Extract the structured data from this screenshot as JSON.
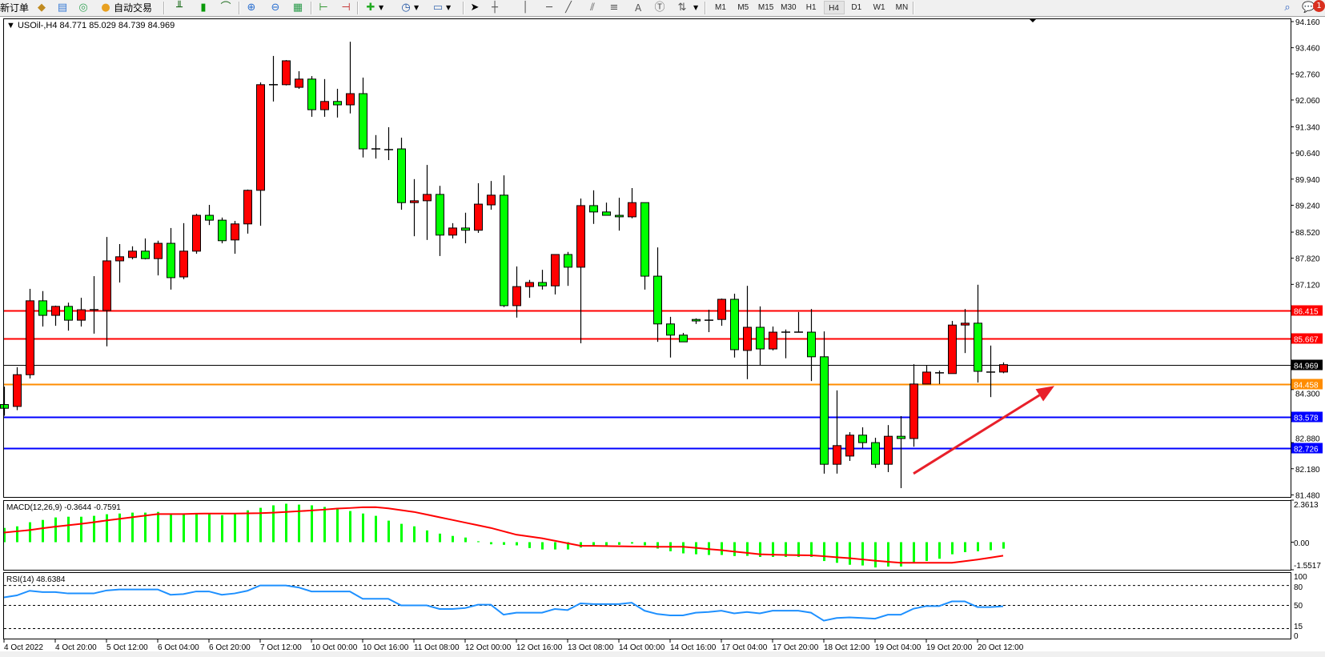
{
  "toolbar": {
    "new_order_label": "新订单",
    "auto_trading_label": "自动交易",
    "text_tool_label": "A",
    "timeframes": [
      "M1",
      "M5",
      "M15",
      "M30",
      "H1",
      "H4",
      "D1",
      "W1",
      "MN"
    ],
    "active_timeframe": "H4",
    "notification_count": "1"
  },
  "chart": {
    "header": "▼ USOil-,H4  84.771 85.029 84.739 84.969",
    "symbol": "USOil-",
    "period": "H4",
    "colors": {
      "bull": "#ff0000",
      "bear": "#00ff00",
      "outline": "#000000",
      "resistance": "#ff0000",
      "support": "#0000ff",
      "pivot": "#ff8c00",
      "bid": "#000000",
      "arrow": "#e8202a",
      "rsi": "#1e90ff",
      "macd_hist": "#00ff00",
      "macd_signal": "#ff0000"
    }
  },
  "chart_data": {
    "type": "candlestick",
    "price_range": [
      81.48,
      94.16
    ],
    "price_ticks": [
      "94.160",
      "93.460",
      "92.760",
      "92.060",
      "91.340",
      "90.640",
      "89.940",
      "89.240",
      "88.520",
      "87.820",
      "87.120",
      "84.300",
      "82.880",
      "82.180",
      "81.480"
    ],
    "levels": [
      {
        "price": "86.415",
        "color": "#ff0000"
      },
      {
        "price": "85.667",
        "color": "#ff0000"
      },
      {
        "price": "84.969",
        "color": "#000000"
      },
      {
        "price": "84.458",
        "color": "#ff8c00"
      },
      {
        "price": "83.578",
        "color": "#0000ff"
      },
      {
        "price": "82.726",
        "color": "#0000ff"
      }
    ],
    "time_labels": [
      "4 Oct 2022",
      "4 Oct 20:00",
      "5 Oct 12:00",
      "6 Oct 04:00",
      "6 Oct 20:00",
      "7 Oct 12:00",
      "10 Oct 00:00",
      "10 Oct 16:00",
      "11 Oct 08:00",
      "12 Oct 00:00",
      "12 Oct 16:00",
      "13 Oct 08:00",
      "14 Oct 00:00",
      "14 Oct 16:00",
      "17 Oct 04:00",
      "17 Oct 20:00",
      "18 Oct 12:00",
      "19 Oct 04:00",
      "19 Oct 20:00",
      "20 Oct 12:00"
    ],
    "ohlc": [
      [
        83.9,
        84.38,
        83.6,
        83.8
      ],
      [
        83.85,
        84.9,
        83.75,
        84.7
      ],
      [
        84.7,
        87.0,
        84.6,
        86.68
      ],
      [
        86.68,
        86.94,
        85.99,
        86.29
      ],
      [
        86.29,
        86.55,
        86.01,
        86.53
      ],
      [
        86.53,
        86.63,
        85.88,
        86.16
      ],
      [
        86.16,
        86.76,
        85.99,
        86.44
      ],
      [
        86.44,
        87.34,
        85.8,
        86.44
      ],
      [
        86.42,
        88.39,
        85.46,
        87.75
      ],
      [
        87.75,
        88.2,
        87.17,
        87.86
      ],
      [
        87.84,
        88.14,
        87.79,
        88.01
      ],
      [
        88.01,
        88.35,
        87.79,
        87.81
      ],
      [
        87.81,
        88.29,
        87.36,
        88.22
      ],
      [
        88.22,
        88.63,
        86.98,
        87.3
      ],
      [
        87.32,
        88.76,
        87.26,
        88.01
      ],
      [
        88.01,
        89.01,
        87.94,
        88.97
      ],
      [
        88.97,
        89.25,
        88.71,
        88.84
      ],
      [
        88.84,
        88.91,
        88.22,
        88.29
      ],
      [
        88.31,
        88.82,
        87.94,
        88.74
      ],
      [
        88.74,
        89.66,
        88.48,
        89.64
      ],
      [
        89.64,
        92.53,
        88.69,
        92.47
      ],
      [
        92.47,
        93.24,
        92.02,
        92.47
      ],
      [
        92.47,
        93.13,
        92.45,
        93.11
      ],
      [
        92.4,
        92.83,
        92.36,
        92.62
      ],
      [
        92.62,
        92.7,
        91.61,
        91.8
      ],
      [
        91.8,
        92.62,
        91.61,
        92.02
      ],
      [
        92.02,
        92.36,
        91.59,
        91.93
      ],
      [
        91.93,
        93.62,
        91.7,
        92.23
      ],
      [
        92.23,
        92.66,
        90.52,
        90.75
      ],
      [
        90.75,
        91.12,
        90.49,
        90.75
      ],
      [
        90.73,
        91.33,
        90.45,
        90.73
      ],
      [
        90.75,
        91.05,
        89.12,
        89.31
      ],
      [
        89.31,
        89.94,
        88.41,
        89.36
      ],
      [
        89.36,
        90.32,
        88.31,
        89.53
      ],
      [
        89.53,
        89.76,
        87.88,
        88.44
      ],
      [
        88.44,
        88.76,
        88.35,
        88.63
      ],
      [
        88.63,
        89.04,
        88.22,
        88.57
      ],
      [
        88.57,
        89.83,
        88.5,
        89.27
      ],
      [
        89.25,
        89.89,
        89.12,
        89.51
      ],
      [
        89.51,
        90.04,
        86.51,
        86.55
      ],
      [
        86.55,
        87.6,
        86.23,
        87.06
      ],
      [
        87.06,
        87.24,
        86.76,
        87.17
      ],
      [
        87.17,
        87.51,
        86.98,
        87.08
      ],
      [
        87.08,
        87.92,
        86.85,
        87.92
      ],
      [
        87.92,
        87.99,
        87.08,
        87.58
      ],
      [
        87.58,
        89.42,
        85.54,
        89.23
      ],
      [
        89.23,
        89.64,
        88.74,
        89.06
      ],
      [
        89.06,
        89.31,
        88.97,
        88.97
      ],
      [
        88.97,
        89.44,
        88.56,
        88.93
      ],
      [
        88.93,
        89.7,
        88.89,
        89.31
      ],
      [
        89.31,
        89.31,
        86.98,
        87.34
      ],
      [
        87.34,
        88.11,
        85.58,
        86.06
      ],
      [
        86.06,
        86.25,
        85.16,
        85.76
      ],
      [
        85.76,
        85.82,
        85.58,
        85.58
      ],
      [
        86.18,
        86.21,
        86.06,
        86.14
      ],
      [
        86.16,
        86.44,
        85.84,
        86.16
      ],
      [
        86.18,
        86.74,
        86.01,
        86.72
      ],
      [
        86.72,
        86.87,
        85.16,
        85.37
      ],
      [
        85.35,
        87.08,
        84.58,
        85.97
      ],
      [
        85.97,
        86.53,
        84.96,
        85.39
      ],
      [
        85.39,
        85.99,
        85.35,
        85.84
      ],
      [
        85.84,
        85.91,
        85.14,
        85.84
      ],
      [
        85.84,
        86.38,
        85.84,
        85.84
      ],
      [
        85.84,
        86.46,
        84.53,
        85.18
      ],
      [
        85.18,
        85.86,
        82.05,
        82.3
      ],
      [
        82.3,
        84.28,
        82.05,
        82.8
      ],
      [
        82.52,
        83.16,
        82.39,
        83.08
      ],
      [
        83.08,
        83.29,
        82.73,
        82.88
      ],
      [
        82.88,
        83.01,
        82.2,
        82.3
      ],
      [
        82.3,
        83.35,
        82.09,
        83.05
      ],
      [
        83.05,
        83.59,
        81.66,
        82.99
      ],
      [
        82.99,
        84.98,
        82.77,
        84.45
      ],
      [
        84.45,
        84.94,
        84.45,
        84.77
      ],
      [
        84.75,
        84.81,
        84.45,
        84.75
      ],
      [
        84.73,
        86.14,
        84.73,
        86.03
      ],
      [
        86.03,
        86.46,
        85.28,
        86.08
      ],
      [
        86.08,
        87.11,
        84.49,
        84.79
      ],
      [
        84.77,
        85.48,
        84.1,
        84.77
      ],
      [
        84.771,
        85.029,
        84.739,
        84.969
      ]
    ],
    "annotation": {
      "type": "arrow",
      "direction": "up-right",
      "from": {
        "bar": 71,
        "price": 82.05
      },
      "to": {
        "bar": 82,
        "price": 84.4
      }
    },
    "macd": {
      "label": "MACD(12,26,9) -0.3644 -0.7591",
      "range": [
        -1.5517,
        2.3613
      ],
      "axis_labels": [
        "2.3613",
        "0.00",
        "-1.5517"
      ],
      "histogram": [
        0.8,
        0.89,
        1.12,
        1.25,
        1.39,
        1.43,
        1.43,
        1.48,
        1.57,
        1.61,
        1.66,
        1.66,
        1.7,
        1.61,
        1.57,
        1.61,
        1.61,
        1.52,
        1.57,
        1.79,
        1.93,
        2.07,
        2.16,
        2.11,
        2.07,
        1.98,
        1.88,
        1.75,
        1.61,
        1.48,
        1.21,
        1.03,
        0.89,
        0.66,
        0.48,
        0.35,
        0.26,
        0.05,
        -0.12,
        -0.15,
        -0.18,
        -0.33,
        -0.41,
        -0.41,
        -0.41,
        -0.3,
        -0.21,
        -0.18,
        -0.15,
        -0.08,
        -0.18,
        -0.36,
        -0.51,
        -0.63,
        -0.68,
        -0.72,
        -0.72,
        -0.78,
        -0.77,
        -0.83,
        -0.83,
        -0.83,
        -0.83,
        -0.83,
        -1.06,
        -1.16,
        -1.27,
        -1.31,
        -1.42,
        -1.37,
        -1.37,
        -1.16,
        -1.06,
        -0.93,
        -0.68,
        -0.56,
        -0.51,
        -0.45,
        -0.3644
      ],
      "signal": [
        0.54,
        0.61,
        0.68,
        0.78,
        0.87,
        0.95,
        1.03,
        1.12,
        1.22,
        1.31,
        1.4,
        1.49,
        1.58,
        1.58,
        1.58,
        1.6,
        1.61,
        1.61,
        1.61,
        1.62,
        1.63,
        1.66,
        1.7,
        1.74,
        1.78,
        1.83,
        1.89,
        1.92,
        1.96,
        1.97,
        1.9,
        1.8,
        1.7,
        1.55,
        1.4,
        1.25,
        1.1,
        0.95,
        0.8,
        0.61,
        0.42,
        0.32,
        0.22,
        0.08,
        -0.06,
        -0.2,
        -0.21,
        -0.22,
        -0.23,
        -0.24,
        -0.25,
        -0.26,
        -0.26,
        -0.26,
        -0.32,
        -0.39,
        -0.45,
        -0.53,
        -0.6,
        -0.68,
        -0.7,
        -0.72,
        -0.73,
        -0.74,
        -0.79,
        -0.85,
        -0.9,
        -0.97,
        -1.04,
        -1.1,
        -1.16,
        -1.16,
        -1.16,
        -1.16,
        -1.16,
        -1.07,
        -0.98,
        -0.87,
        -0.7591
      ]
    },
    "rsi": {
      "label": "RSI(14) 48.6384",
      "range": [
        0,
        100
      ],
      "axis_labels": [
        "100",
        "80",
        "50",
        "15",
        "0"
      ],
      "levels": [
        80,
        50,
        15
      ],
      "values": [
        62,
        65,
        72,
        70,
        70,
        68,
        68,
        68,
        72.5,
        74,
        74,
        74,
        74,
        66,
        67,
        71,
        71,
        66,
        68,
        72,
        80,
        80,
        80,
        77,
        71,
        71,
        71,
        71,
        60,
        60,
        60,
        50,
        50,
        50,
        44.6,
        44.6,
        46,
        51,
        51,
        36,
        39,
        39,
        39,
        44.6,
        43,
        53,
        52,
        52,
        52,
        54,
        42,
        37,
        35,
        35,
        39,
        40,
        42,
        38,
        40,
        38,
        42,
        42,
        42,
        39,
        27,
        31,
        32,
        31,
        30,
        36,
        36,
        45,
        49,
        49,
        56,
        56,
        47.5,
        47.5,
        48.6384
      ]
    }
  }
}
